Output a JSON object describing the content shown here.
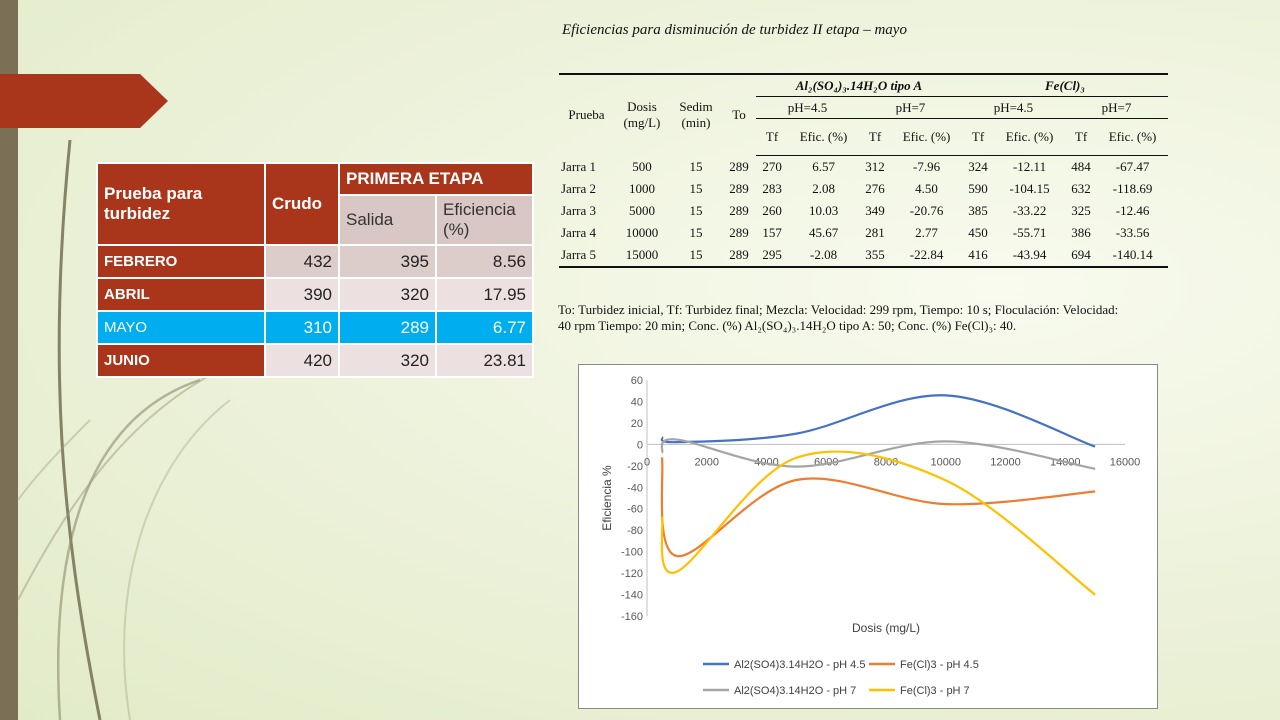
{
  "colors": {
    "accent_red": "#a9361b",
    "highlight_blue": "#00aeef",
    "bar": "#7b7055"
  },
  "left_table": {
    "col_prueba": "Prueba para turbidez",
    "col_crudo": "Crudo",
    "col_etapa": "PRIMERA ETAPA",
    "col_salida": "Salida",
    "col_eficiencia": "Eficiencia (%)",
    "rows": [
      {
        "month": "FEBRERO",
        "crudo": "432",
        "salida": "395",
        "eficiencia": "8.56"
      },
      {
        "month": "ABRIL",
        "crudo": "390",
        "salida": "320",
        "eficiencia": "17.95"
      },
      {
        "month": "MAYO",
        "crudo": "310",
        "salida": "289",
        "eficiencia": "6.77"
      },
      {
        "month": "JUNIO",
        "crudo": "420",
        "salida": "320",
        "eficiencia": "23.81"
      }
    ]
  },
  "right_table": {
    "caption": "Eficiencias para disminución de turbidez II etapa – mayo",
    "h_prueba": "Prueba",
    "h_dosis": "Dosis (mg/L)",
    "h_sedim": "Sedim (min)",
    "h_to": "To",
    "h_al": "Al₂(SO₄)₃.14H₂O tipo A",
    "h_fe": "Fe(Cl)₃",
    "ph": [
      "pH=4.5",
      "pH=7",
      "pH=4.5",
      "pH=7"
    ],
    "tf": "Tf",
    "efic": "Efic. (%)",
    "rows": [
      [
        "Jarra 1",
        "500",
        "15",
        "289",
        "270",
        "6.57",
        "312",
        "-7.96",
        "324",
        "-12.11",
        "484",
        "-67.47"
      ],
      [
        "Jarra 2",
        "1000",
        "15",
        "289",
        "283",
        "2.08",
        "276",
        "4.50",
        "590",
        "-104.15",
        "632",
        "-118.69"
      ],
      [
        "Jarra 3",
        "5000",
        "15",
        "289",
        "260",
        "10.03",
        "349",
        "-20.76",
        "385",
        "-33.22",
        "325",
        "-12.46"
      ],
      [
        "Jarra 4",
        "10000",
        "15",
        "289",
        "157",
        "45.67",
        "281",
        "2.77",
        "450",
        "-55.71",
        "386",
        "-33.56"
      ],
      [
        "Jarra 5",
        "15000",
        "15",
        "289",
        "295",
        "-2.08",
        "355",
        "-22.84",
        "416",
        "-43.94",
        "694",
        "-140.14"
      ]
    ],
    "note_line1": "To: Turbidez inicial, Tf: Turbidez final; Mezcla: Velocidad: 299 rpm, Tiempo: 10 s; Floculación: Velocidad:",
    "note_line2": "40 rpm Tiempo: 20 min; Conc. (%) Al₂(SO₄)₃.14H₂O tipo A: 50; Conc. (%) Fe(Cl)₃: 40."
  },
  "chart_data": {
    "type": "line",
    "xlabel": "Dosis (mg/L)",
    "ylabel": "Eficiencia %",
    "xlim": [
      0,
      16000
    ],
    "ylim": [
      -160,
      60
    ],
    "xticks": [
      0,
      2000,
      4000,
      6000,
      8000,
      10000,
      12000,
      14000,
      16000
    ],
    "yticks": [
      60,
      40,
      20,
      0,
      -20,
      -40,
      -60,
      -80,
      -100,
      -120,
      -140,
      -160
    ],
    "legend_position": "bottom",
    "series": [
      {
        "name": "Al2(SO4)3.14H2O - pH 4.5",
        "color": "#4472c4",
        "x": [
          500,
          1000,
          5000,
          10000,
          15000
        ],
        "y": [
          6.57,
          2.08,
          10.03,
          45.67,
          -2.08
        ]
      },
      {
        "name": "Fe(Cl)3 - pH 4.5",
        "color": "#ed7d31",
        "x": [
          500,
          1000,
          5000,
          10000,
          15000
        ],
        "y": [
          -12.11,
          -104.15,
          -33.22,
          -55.71,
          -43.94
        ]
      },
      {
        "name": "Al2(SO4)3.14H2O - pH 7",
        "color": "#a5a5a5",
        "x": [
          500,
          1000,
          5000,
          10000,
          15000
        ],
        "y": [
          -7.96,
          4.5,
          -20.76,
          2.77,
          -22.84
        ]
      },
      {
        "name": "Fe(Cl)3 - pH 7",
        "color": "#ffc000",
        "x": [
          500,
          1000,
          5000,
          10000,
          15000
        ],
        "y": [
          -67.47,
          -118.69,
          -12.46,
          -33.56,
          -140.14
        ]
      }
    ]
  }
}
